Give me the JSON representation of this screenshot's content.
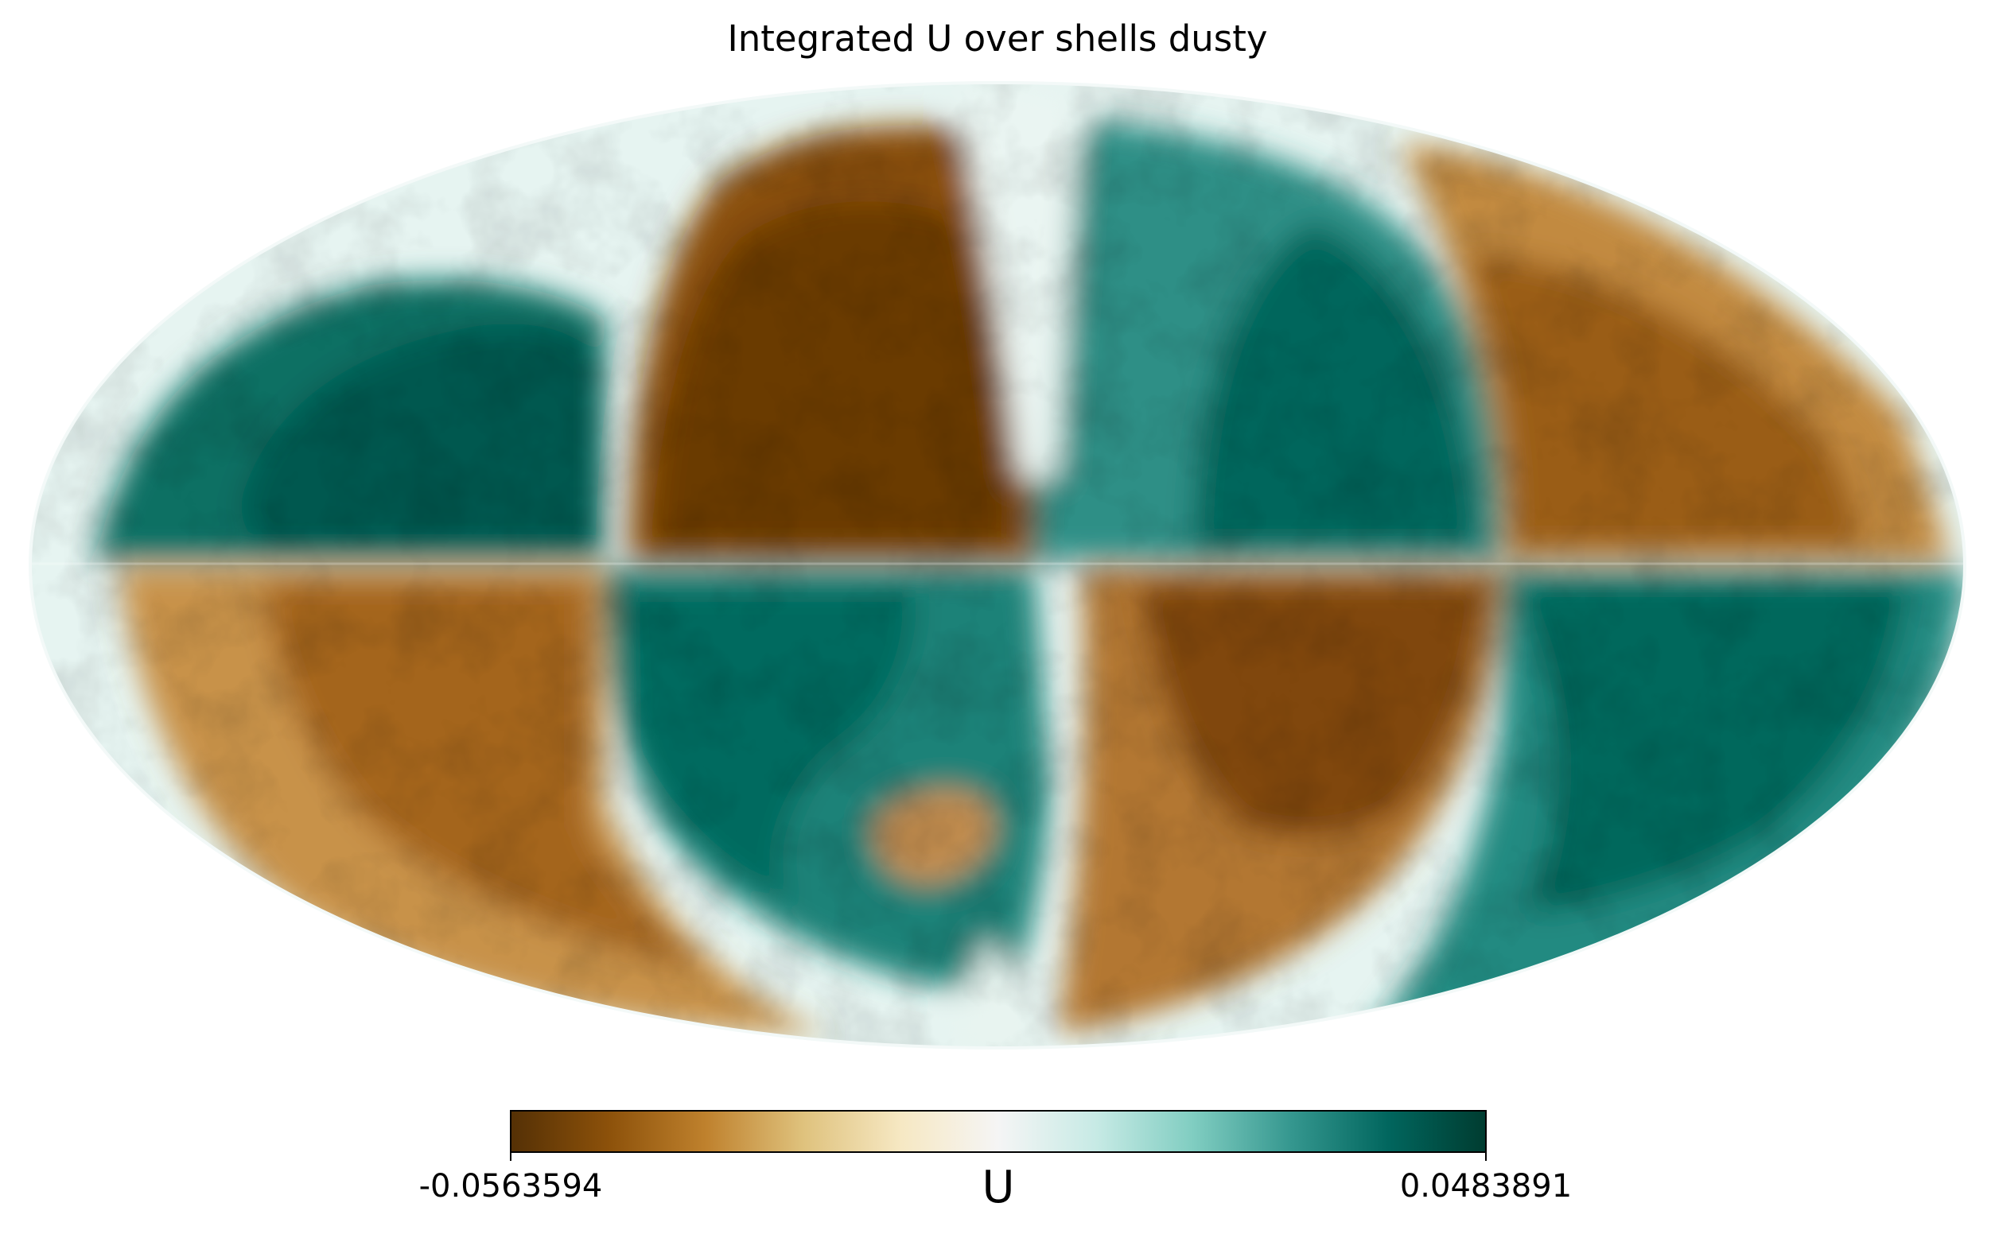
{
  "chart_data": {
    "type": "heatmap",
    "projection": "mollweide",
    "title": "Integrated U over shells dusty",
    "colorbar": {
      "label": "U",
      "min": -0.0563594,
      "max": 0.0483891,
      "min_label": "-0.0563594",
      "max_label": "0.0483891",
      "colormap": "BrBG",
      "stops": [
        "#543005",
        "#8c510a",
        "#bf812d",
        "#dfc27d",
        "#f6e8c3",
        "#f5f5f5",
        "#c7eae5",
        "#80cdc1",
        "#35978f",
        "#01665e",
        "#003c30"
      ]
    },
    "regions": [
      {
        "name": "upper-left",
        "sign": "positive"
      },
      {
        "name": "upper-center-left",
        "sign": "negative"
      },
      {
        "name": "upper-center-right",
        "sign": "positive"
      },
      {
        "name": "upper-right",
        "sign": "negative"
      },
      {
        "name": "lower-left",
        "sign": "negative"
      },
      {
        "name": "lower-center-left",
        "sign": "positive"
      },
      {
        "name": "lower-center-right",
        "sign": "negative"
      },
      {
        "name": "lower-right",
        "sign": "positive"
      }
    ]
  }
}
